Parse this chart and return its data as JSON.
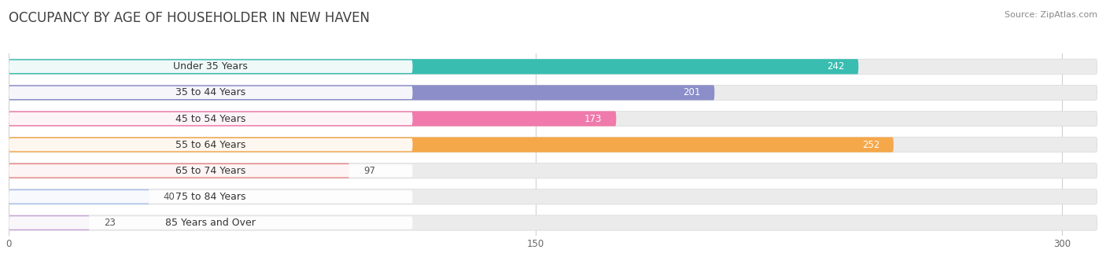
{
  "title": "OCCUPANCY BY AGE OF HOUSEHOLDER IN NEW HAVEN",
  "source": "Source: ZipAtlas.com",
  "categories": [
    "Under 35 Years",
    "35 to 44 Years",
    "45 to 54 Years",
    "55 to 64 Years",
    "65 to 74 Years",
    "75 to 84 Years",
    "85 Years and Over"
  ],
  "values": [
    242,
    201,
    173,
    252,
    97,
    40,
    23
  ],
  "bar_colors": [
    "#38bdb0",
    "#8b8ec8",
    "#f07aab",
    "#f5a84a",
    "#e88888",
    "#a8bfe8",
    "#c8a8d8"
  ],
  "xlim_max": 310,
  "xticks": [
    0,
    150,
    300
  ],
  "title_fontsize": 12,
  "source_fontsize": 8,
  "label_fontsize": 9,
  "value_fontsize": 8.5,
  "bar_height": 0.58,
  "background_color": "#ffffff",
  "bar_bg_color": "#ebebeb",
  "label_pill_color": "#ffffff",
  "value_threshold": 150
}
